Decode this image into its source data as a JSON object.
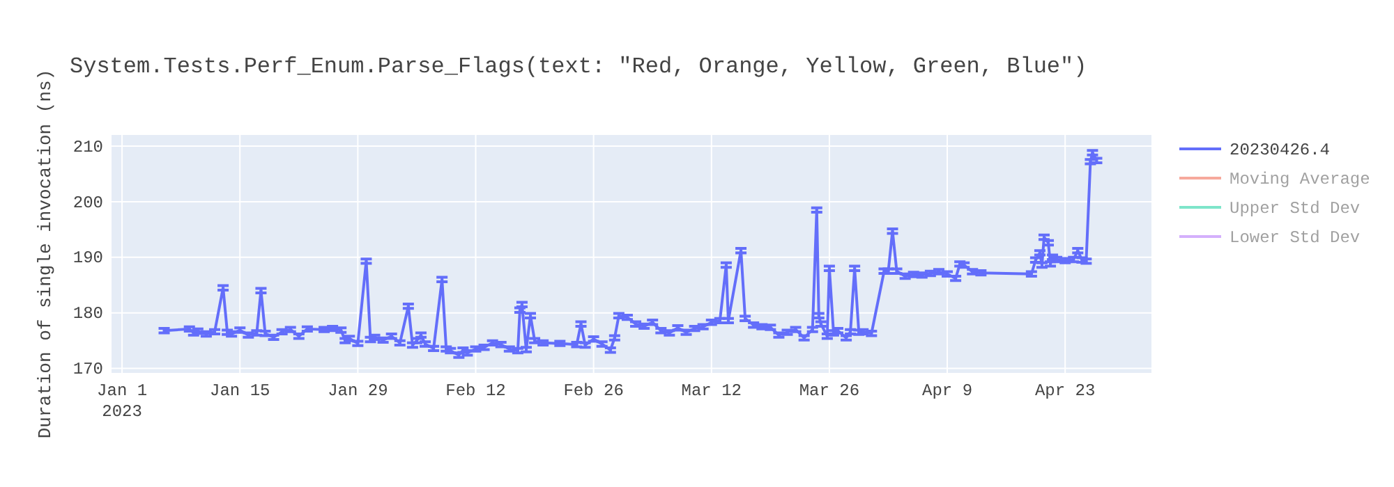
{
  "chart_data": {
    "type": "line",
    "title": "System.Tests.Perf_Enum.Parse_Flags(text: \"Red, Orange, Yellow, Green, Blue\")",
    "ylabel": "Duration of single invocation (ns)",
    "xlim": [
      "2022-12-30T18:00",
      "2023-05-03T06:00"
    ],
    "xticks": [
      {
        "value": "2023-01-01",
        "label": "Jan 1\n2023"
      },
      {
        "value": "2023-01-15",
        "label": "Jan 15"
      },
      {
        "value": "2023-01-29",
        "label": "Jan 29"
      },
      {
        "value": "2023-02-12",
        "label": "Feb 12"
      },
      {
        "value": "2023-02-26",
        "label": "Feb 26"
      },
      {
        "value": "2023-03-12",
        "label": "Mar 12"
      },
      {
        "value": "2023-03-26",
        "label": "Mar 26"
      },
      {
        "value": "2023-04-09",
        "label": "Apr 9"
      },
      {
        "value": "2023-04-23",
        "label": "Apr 23"
      }
    ],
    "ylim": [
      169.2,
      212
    ],
    "yticks": [
      170,
      180,
      190,
      200,
      210
    ],
    "grid": true,
    "legend": "top right",
    "marker": "none",
    "line_style": "solid",
    "x": [
      "2023-01-06",
      "2023-01-09",
      "2023-01-09T12:00",
      "2023-01-10",
      "2023-01-11",
      "2023-01-12",
      "2023-01-13",
      "2023-01-13T12:00",
      "2023-01-14",
      "2023-01-15",
      "2023-01-16",
      "2023-01-17",
      "2023-01-17T12:00",
      "2023-01-18",
      "2023-01-19",
      "2023-01-20",
      "2023-01-21",
      "2023-01-22",
      "2023-01-23",
      "2023-01-25",
      "2023-01-26",
      "2023-01-27",
      "2023-01-27T12:00",
      "2023-01-28",
      "2023-01-29",
      "2023-01-30",
      "2023-01-30T12:00",
      "2023-01-31",
      "2023-02-01",
      "2023-02-02",
      "2023-02-03",
      "2023-02-04",
      "2023-02-04T12:00",
      "2023-02-05",
      "2023-02-05T12:00",
      "2023-02-06",
      "2023-02-07",
      "2023-02-08",
      "2023-02-08T12:00",
      "2023-02-09",
      "2023-02-10",
      "2023-02-10T12:00",
      "2023-02-11",
      "2023-02-12",
      "2023-02-13",
      "2023-02-14",
      "2023-02-15",
      "2023-02-16",
      "2023-02-17",
      "2023-02-17T06:00",
      "2023-02-17T12:00",
      "2023-02-18",
      "2023-02-18T12:00",
      "2023-02-19",
      "2023-02-20",
      "2023-02-22",
      "2023-02-24",
      "2023-02-24T12:00",
      "2023-02-25",
      "2023-02-26",
      "2023-02-27",
      "2023-02-28",
      "2023-02-28T12:00",
      "2023-03-01",
      "2023-03-02",
      "2023-03-03",
      "2023-03-04",
      "2023-03-05",
      "2023-03-06",
      "2023-03-07",
      "2023-03-08",
      "2023-03-09",
      "2023-03-10",
      "2023-03-11",
      "2023-03-12",
      "2023-03-13",
      "2023-03-13T18:00",
      "2023-03-14",
      "2023-03-15T12:00",
      "2023-03-16",
      "2023-03-17",
      "2023-03-18",
      "2023-03-19",
      "2023-03-20",
      "2023-03-21",
      "2023-03-22",
      "2023-03-23",
      "2023-03-24",
      "2023-03-24T12:00",
      "2023-03-24T18:00",
      "2023-03-25",
      "2023-03-25T18:00",
      "2023-03-26",
      "2023-03-26T12:00",
      "2023-03-27",
      "2023-03-28",
      "2023-03-28T12:00",
      "2023-03-29",
      "2023-03-29T12:00",
      "2023-03-30",
      "2023-03-31",
      "2023-04-01T12:00",
      "2023-04-02",
      "2023-04-02T12:00",
      "2023-04-03",
      "2023-04-04",
      "2023-04-05",
      "2023-04-06",
      "2023-04-07",
      "2023-04-08",
      "2023-04-09",
      "2023-04-10",
      "2023-04-10T12:00",
      "2023-04-11",
      "2023-04-12",
      "2023-04-13",
      "2023-04-19",
      "2023-04-19T12:00",
      "2023-04-20",
      "2023-04-20T06:00",
      "2023-04-20T12:00",
      "2023-04-21",
      "2023-04-21T06:00",
      "2023-04-21T12:00",
      "2023-04-22",
      "2023-04-23",
      "2023-04-24",
      "2023-04-24T12:00",
      "2023-04-25",
      "2023-04-25T12:00",
      "2023-04-26",
      "2023-04-26T06:00",
      "2023-04-26T18:00"
    ],
    "series": [
      {
        "name": "20230426.4",
        "color": "#636efa",
        "values": [
          176.8,
          177.1,
          176.4,
          176.7,
          176.2,
          176.6,
          184.5,
          176.5,
          176.2,
          176.9,
          176.0,
          176.4,
          184.0,
          176.3,
          175.6,
          176.6,
          177.0,
          175.8,
          177.1,
          177.0,
          177.2,
          176.9,
          175.0,
          175.4,
          174.5,
          189.3,
          175.2,
          175.6,
          175.1,
          175.8,
          174.6,
          181.2,
          174.2,
          175.0,
          176.0,
          174.4,
          173.6,
          186.0,
          173.5,
          173.2,
          172.4,
          173.3,
          172.8,
          173.5,
          173.8,
          174.6,
          174.3,
          173.5,
          173.2,
          180.5,
          181.5,
          173.4,
          179.5,
          175.0,
          174.6,
          174.5,
          174.3,
          178.0,
          174.2,
          175.3,
          174.4,
          173.3,
          175.5,
          179.5,
          179.2,
          178.0,
          177.6,
          178.3,
          176.8,
          176.4,
          177.3,
          176.5,
          177.2,
          177.5,
          178.3,
          178.6,
          188.6,
          178.6,
          191.2,
          179.0,
          177.8,
          177.5,
          177.4,
          176.0,
          176.5,
          177.0,
          175.5,
          177.0,
          198.5,
          179.5,
          178.0,
          175.8,
          188.0,
          176.4,
          176.8,
          175.5,
          176.6,
          188.0,
          176.5,
          176.6,
          176.3,
          187.5,
          187.5,
          194.7,
          187.5,
          186.6,
          186.9,
          186.8,
          187.1,
          187.4,
          187.0,
          186.2,
          188.8,
          188.6,
          187.4,
          187.2,
          187.0,
          189.5,
          190.8,
          188.6,
          193.6,
          192.6,
          188.8,
          190.0,
          189.6,
          189.4,
          189.6,
          191.2,
          189.5,
          189.3,
          207.2,
          208.8,
          207.4
        ],
        "errors": [
          0.4,
          0.4,
          0.4,
          0.4,
          0.4,
          0.4,
          0.4,
          0.4,
          0.4,
          0.4,
          0.4,
          0.4,
          0.4,
          0.4,
          0.4,
          0.4,
          0.4,
          0.4,
          0.4,
          0.4,
          0.4,
          0.4,
          0.4,
          0.4,
          0.4,
          0.4,
          0.4,
          0.4,
          0.4,
          0.4,
          0.4,
          0.4,
          0.4,
          0.4,
          0.4,
          0.4,
          0.4,
          0.4,
          0.4,
          0.4,
          0.4,
          0.4,
          0.4,
          0.4,
          0.4,
          0.4,
          0.4,
          0.4,
          0.4,
          0.4,
          0.4,
          0.4,
          0.4,
          0.4,
          0.4,
          0.4,
          0.4,
          0.4,
          0.4,
          0.4,
          0.4,
          0.4,
          0.4,
          0.4,
          0.4,
          0.4,
          0.4,
          0.4,
          0.4,
          0.4,
          0.4,
          0.4,
          0.4,
          0.4,
          0.4,
          0.4,
          0.4,
          0.4,
          0.4,
          0.4,
          0.4,
          0.4,
          0.4,
          0.4,
          0.4,
          0.4,
          0.4,
          0.4,
          0.4,
          0.4,
          0.4,
          0.4,
          0.4,
          0.4,
          0.4,
          0.4,
          0.4,
          0.4,
          0.4,
          0.4,
          0.4,
          0.4,
          0.4,
          0.4,
          0.4,
          0.4,
          0.4,
          0.4,
          0.4,
          0.4,
          0.4,
          0.4,
          0.4,
          0.4,
          0.4,
          0.4,
          0.4,
          0.4,
          0.4,
          0.4,
          0.4,
          0.4,
          0.4,
          0.4,
          0.4,
          0.4,
          0.4,
          0.4,
          0.4,
          0.4,
          0.4,
          0.4,
          0.4
        ]
      },
      {
        "name": "Moving Average",
        "color": "#ef553b",
        "values": [
          null,
          null,
          null,
          null,
          null,
          null,
          null,
          null,
          null,
          null,
          null,
          null,
          null,
          null,
          null,
          null,
          null,
          null,
          null,
          null,
          null,
          null,
          null,
          null,
          null,
          null,
          null,
          null,
          null,
          null,
          null,
          null,
          null,
          null,
          null,
          null,
          null,
          null,
          null,
          null,
          null,
          null,
          null,
          null,
          null,
          null,
          null,
          null,
          null,
          null,
          null,
          null,
          null,
          null,
          null,
          null,
          null,
          null,
          null,
          null,
          null,
          null,
          null,
          null,
          null,
          null,
          null,
          null,
          null,
          null,
          null,
          null,
          null,
          null,
          null,
          null,
          null,
          null,
          null,
          null,
          null,
          null,
          null,
          null,
          null,
          null,
          null,
          null,
          null,
          null,
          null,
          null,
          null,
          null,
          null,
          null,
          null,
          null,
          null,
          null,
          null,
          null,
          null,
          null,
          null,
          null,
          null,
          null,
          null,
          null,
          null,
          null,
          null,
          null,
          null,
          null,
          null,
          null,
          null,
          null,
          null,
          null,
          null,
          null,
          null,
          null,
          null,
          null,
          null,
          null,
          null,
          null,
          null
        ]
      },
      {
        "name": "Upper Std Dev",
        "color": "#00cc96",
        "values": [
          null,
          null,
          null,
          null,
          null,
          null,
          null,
          null,
          null,
          null,
          null,
          null,
          null,
          null,
          null,
          null,
          null,
          null,
          null,
          null,
          null,
          null,
          null,
          null,
          null,
          null,
          null,
          null,
          null,
          null,
          null,
          null,
          null,
          null,
          null,
          null,
          null,
          null,
          null,
          null,
          null,
          null,
          null,
          null,
          null,
          null,
          null,
          null,
          null,
          null,
          null,
          null,
          null,
          null,
          null,
          null,
          null,
          null,
          null,
          null,
          null,
          null,
          null,
          null,
          null,
          null,
          null,
          null,
          null,
          null,
          null,
          null,
          null,
          null,
          null,
          null,
          null,
          null,
          null,
          null,
          null,
          null,
          null,
          null,
          null,
          null,
          null,
          null,
          null,
          null,
          null,
          null,
          null,
          null,
          null,
          null,
          null,
          null,
          null,
          null,
          null,
          null,
          null,
          null,
          null,
          null,
          null,
          null,
          null,
          null,
          null,
          null,
          null,
          null,
          null,
          null,
          null,
          null,
          null,
          null,
          null,
          null,
          null,
          null,
          null,
          null,
          null,
          null,
          null,
          null,
          null,
          null,
          null
        ]
      },
      {
        "name": "Lower Std Dev",
        "color": "#ab63fa",
        "values": [
          null,
          null,
          null,
          null,
          null,
          null,
          null,
          null,
          null,
          null,
          null,
          null,
          null,
          null,
          null,
          null,
          null,
          null,
          null,
          null,
          null,
          null,
          null,
          null,
          null,
          null,
          null,
          null,
          null,
          null,
          null,
          null,
          null,
          null,
          null,
          null,
          null,
          null,
          null,
          null,
          null,
          null,
          null,
          null,
          null,
          null,
          null,
          null,
          null,
          null,
          null,
          null,
          null,
          null,
          null,
          null,
          null,
          null,
          null,
          null,
          null,
          null,
          null,
          null,
          null,
          null,
          null,
          null,
          null,
          null,
          null,
          null,
          null,
          null,
          null,
          null,
          null,
          null,
          null,
          null,
          null,
          null,
          null,
          null,
          null,
          null,
          null,
          null,
          null,
          null,
          null,
          null,
          null,
          null,
          null,
          null,
          null,
          null,
          null,
          null,
          null,
          null,
          null,
          null,
          null,
          null,
          null,
          null,
          null,
          null,
          null,
          null,
          null,
          null,
          null,
          null,
          null,
          null,
          null,
          null,
          null,
          null,
          null,
          null,
          null,
          null,
          null,
          null,
          null,
          null,
          null,
          null,
          null
        ]
      }
    ]
  }
}
